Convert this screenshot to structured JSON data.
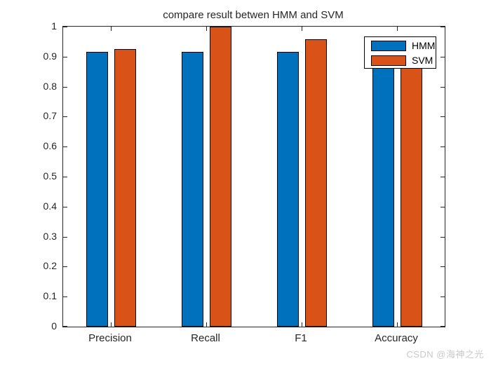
{
  "watermark": "CSDN @海神之光",
  "chart_data": {
    "type": "bar",
    "title": "compare result betwen HMM and SVM",
    "categories": [
      "Precision",
      "Recall",
      "F1",
      "Accuracy"
    ],
    "series": [
      {
        "name": "HMM",
        "color": "#0072BD",
        "values": [
          0.915,
          0.915,
          0.915,
          0.92
        ]
      },
      {
        "name": "SVM",
        "color": "#D95319",
        "values": [
          0.925,
          1.0,
          0.958,
          0.93
        ]
      }
    ],
    "xlabel": "",
    "ylabel": "",
    "ylim": [
      0,
      1
    ],
    "ytick_labels": [
      "0",
      "0.1",
      "0.2",
      "0.3",
      "0.4",
      "0.5",
      "0.6",
      "0.7",
      "0.8",
      "0.9",
      "1"
    ],
    "grid": false,
    "legend_position": "northeast",
    "notes": "Accuracy group bar tops are occluded by the legend box"
  }
}
